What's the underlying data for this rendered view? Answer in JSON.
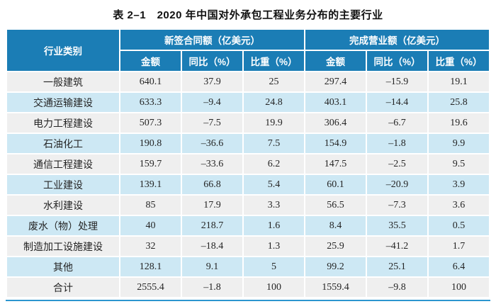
{
  "title": "表 2–1　2020 年中国对外承包工程业务分布的主要行业",
  "table": {
    "group_headers": [
      {
        "label": "行业类别"
      },
      {
        "label": "新签合同额（亿美元）"
      },
      {
        "label": "完成营业额（亿美元）"
      }
    ],
    "sub_headers": [
      "金额",
      "同比（%）",
      "比重（%）",
      "金额",
      "同比（%）",
      "比重（%）"
    ],
    "rows": [
      {
        "label": "一般建筑",
        "values": [
          "640.1",
          "37.9",
          "25",
          "297.4",
          "–15.9",
          "19.1"
        ]
      },
      {
        "label": "交通运输建设",
        "values": [
          "633.3",
          "–9.4",
          "24.8",
          "403.1",
          "–14.4",
          "25.8"
        ]
      },
      {
        "label": "电力工程建设",
        "values": [
          "507.3",
          "–7.5",
          "19.9",
          "306.4",
          "–6.7",
          "19.6"
        ]
      },
      {
        "label": "石油化工",
        "values": [
          "190.8",
          "–36.6",
          "7.5",
          "154.9",
          "–1.8",
          "9.9"
        ]
      },
      {
        "label": "通信工程建设",
        "values": [
          "159.7",
          "–33.6",
          "6.2",
          "147.5",
          "–2.5",
          "9.5"
        ]
      },
      {
        "label": "工业建设",
        "values": [
          "139.1",
          "66.8",
          "5.4",
          "60.1",
          "–20.9",
          "3.9"
        ]
      },
      {
        "label": "水利建设",
        "values": [
          "85",
          "17.9",
          "3.3",
          "56.5",
          "–7.3",
          "3.6"
        ]
      },
      {
        "label": "废水（物）处理",
        "values": [
          "40",
          "218.7",
          "1.6",
          "8.4",
          "35.5",
          "0.5"
        ]
      },
      {
        "label": "制造加工设施建设",
        "values": [
          "32",
          "–18.4",
          "1.3",
          "25.9",
          "–41.2",
          "1.7"
        ]
      },
      {
        "label": "其他",
        "values": [
          "128.1",
          "9.1",
          "5",
          "99.2",
          "25.1",
          "6.4"
        ]
      },
      {
        "label": "合计",
        "values": [
          "2555.4",
          "–1.8",
          "100",
          "1559.4",
          "–9.8",
          "100"
        ]
      }
    ]
  },
  "colors": {
    "header_blue": "#1b7db5",
    "row_gray": "#efefef",
    "row_light_blue": "#cde8f4",
    "bottom_rule_blue": "#2d96cf",
    "header_text": "#ffffff",
    "body_text": "#252525"
  }
}
